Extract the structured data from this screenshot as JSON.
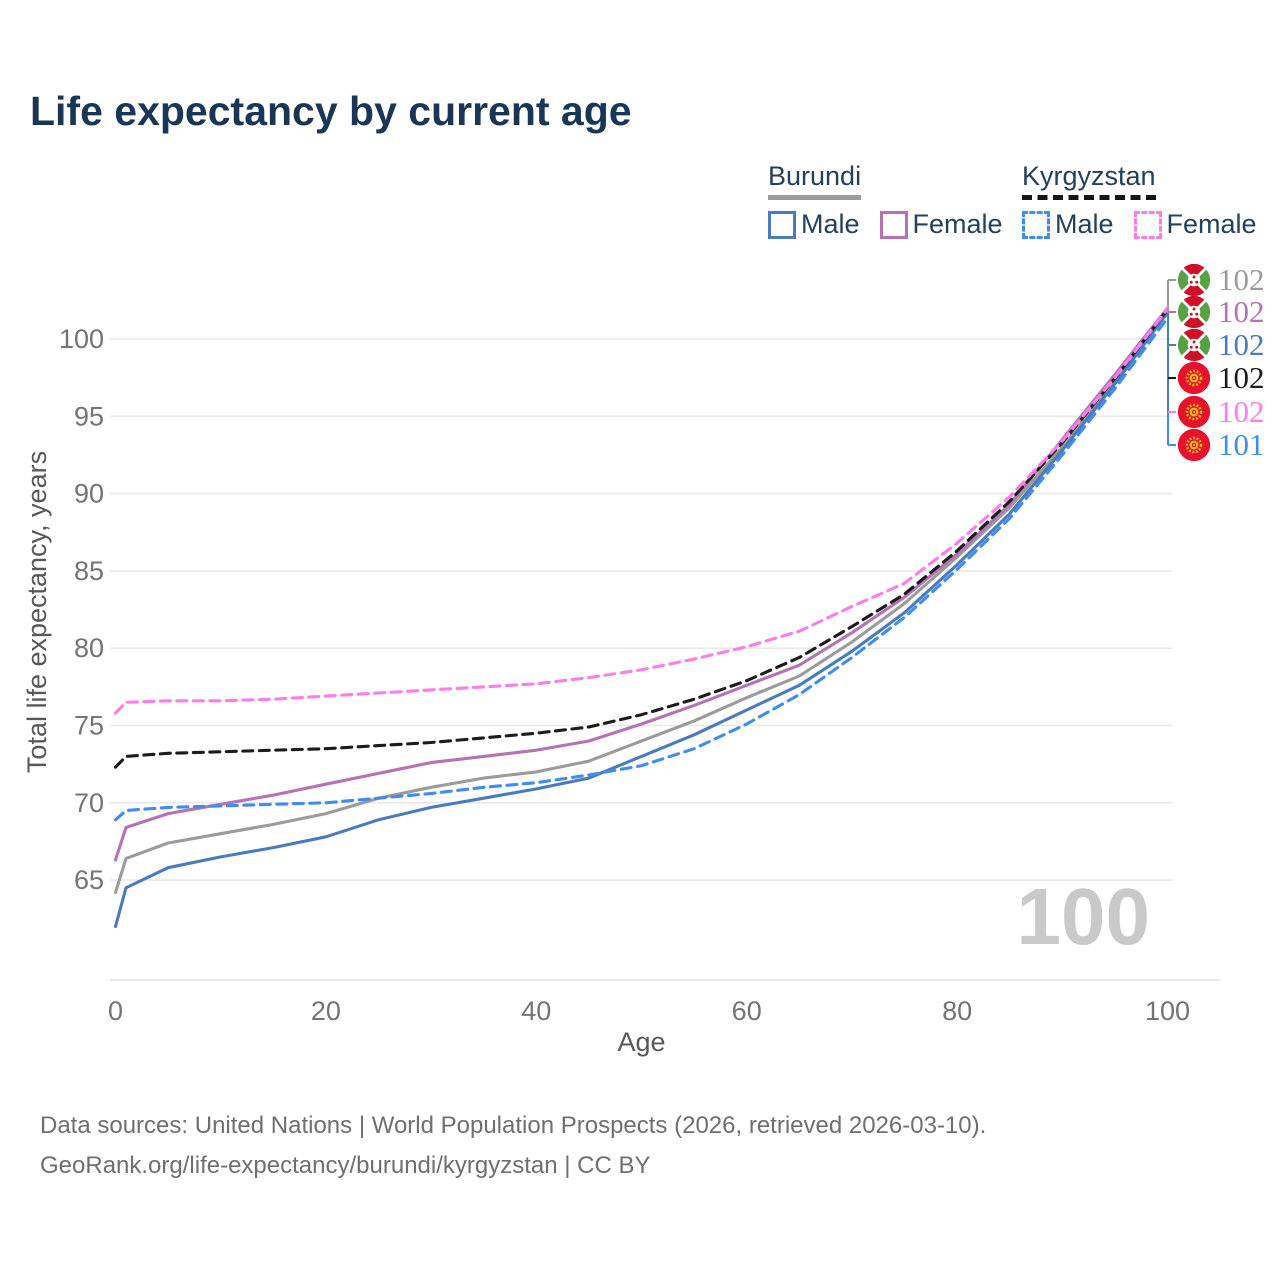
{
  "title": "Life expectancy by current age",
  "watermark": "100",
  "legend": {
    "groups": [
      {
        "name": "Burundi",
        "line_style": "solid",
        "items": [
          {
            "label": "Male",
            "color": "#4a7bbd"
          },
          {
            "label": "Female",
            "color": "#b572b4"
          }
        ]
      },
      {
        "name": "Kyrgyzstan",
        "line_style": "dashed",
        "items": [
          {
            "label": "Male",
            "color": "#408cf0"
          },
          {
            "label": "Female",
            "color": "#ff7de9"
          }
        ]
      }
    ]
  },
  "footer": {
    "line1": "Data sources: United Nations | World Population Prospects (2026, retrieved 2026-03-10).",
    "line2": "GeoRank.org/life-expectancy/burundi/kyrgyzstan | CC BY"
  },
  "chart_data": {
    "type": "line",
    "title": "Life expectancy by current age",
    "xlabel": "Age",
    "ylabel": "Total life expectancy, years",
    "xlim": [
      0,
      100
    ],
    "ylim": [
      61,
      103
    ],
    "xticks": [
      0,
      20,
      40,
      60,
      80,
      100
    ],
    "yticks": [
      65,
      70,
      75,
      80,
      85,
      90,
      95,
      100
    ],
    "grid": "horizontal",
    "legend_position": "top-right",
    "x": [
      0,
      1,
      5,
      10,
      15,
      20,
      25,
      30,
      35,
      40,
      45,
      50,
      55,
      60,
      65,
      70,
      75,
      80,
      85,
      90,
      95,
      100
    ],
    "series": [
      {
        "id": "burundi-both",
        "name": "Burundi — Both sexes",
        "country": "Burundi",
        "sex": "both",
        "line_style": "solid",
        "color": "#9b9b9b",
        "flag": "burundi",
        "end_label": "102",
        "values": [
          64.2,
          66.4,
          67.4,
          68.0,
          68.6,
          69.3,
          70.3,
          71.0,
          71.6,
          72.0,
          72.7,
          74.0,
          75.3,
          76.8,
          78.2,
          80.4,
          82.9,
          85.9,
          89.1,
          93.0,
          97.3,
          101.85
        ]
      },
      {
        "id": "burundi-female",
        "name": "Burundi — Female",
        "country": "Burundi",
        "sex": "female",
        "line_style": "solid",
        "color": "#b572b4",
        "flag": "burundi",
        "end_label": "102",
        "values": [
          66.3,
          68.4,
          69.3,
          69.9,
          70.5,
          71.2,
          71.9,
          72.6,
          73.0,
          73.4,
          74.0,
          75.1,
          76.3,
          77.6,
          78.9,
          81.0,
          83.3,
          86.1,
          89.3,
          93.5,
          97.7,
          102.0
        ]
      },
      {
        "id": "burundi-male",
        "name": "Burundi — Male",
        "country": "Burundi",
        "sex": "male",
        "line_style": "solid",
        "color": "#4a7bbd",
        "flag": "burundi",
        "end_label": "102",
        "values": [
          62.0,
          64.5,
          65.8,
          66.5,
          67.1,
          67.8,
          68.9,
          69.7,
          70.3,
          70.9,
          71.6,
          73.0,
          74.4,
          76.0,
          77.6,
          79.8,
          82.3,
          85.4,
          88.7,
          92.8,
          97.1,
          101.7
        ]
      },
      {
        "id": "kyrgyzstan-both",
        "name": "Kyrgyzstan — Both sexes",
        "country": "Kyrgyzstan",
        "sex": "both",
        "line_style": "dashed",
        "color": "#1c1c1c",
        "flag": "kyrgyzstan",
        "end_label": "102",
        "values": [
          72.3,
          73.0,
          73.2,
          73.3,
          73.4,
          73.5,
          73.7,
          73.9,
          74.2,
          74.5,
          74.9,
          75.7,
          76.7,
          77.9,
          79.4,
          81.4,
          83.5,
          86.3,
          89.5,
          93.3,
          97.45,
          101.9
        ]
      },
      {
        "id": "kyrgyzstan-female",
        "name": "Kyrgyzstan — Female",
        "country": "Kyrgyzstan",
        "sex": "female",
        "line_style": "dashed",
        "color": "#ff7de9",
        "flag": "kyrgyzstan",
        "end_label": "102",
        "values": [
          75.8,
          76.5,
          76.6,
          76.6,
          76.7,
          76.9,
          77.1,
          77.3,
          77.5,
          77.7,
          78.1,
          78.6,
          79.3,
          80.1,
          81.1,
          82.7,
          84.2,
          86.8,
          89.8,
          93.4,
          97.5,
          101.95
        ]
      },
      {
        "id": "kyrgyzstan-male",
        "name": "Kyrgyzstan — Male",
        "country": "Kyrgyzstan",
        "sex": "male",
        "line_style": "dashed",
        "color": "#408cf0",
        "flag": "kyrgyzstan",
        "end_label": "101",
        "values": [
          68.9,
          69.5,
          69.7,
          69.8,
          69.9,
          70.0,
          70.3,
          70.6,
          71.0,
          71.3,
          71.8,
          72.4,
          73.5,
          75.1,
          77.0,
          79.4,
          82.0,
          85.1,
          88.4,
          92.5,
          96.8,
          101.35
        ]
      }
    ],
    "colors": {
      "burundi_male": "#4a7bbd",
      "burundi_female": "#b572b4",
      "burundi_both": "#9b9b9b",
      "kyrgyzstan_male": "#408cf0",
      "kyrgyzstan_female": "#ff7de9",
      "kyrgyzstan_both": "#1c1c1c",
      "grid": "#e9e9e9",
      "tick_text": "#747474",
      "axis_title_text": "#585858",
      "watermark": "#c9c9c9",
      "title_text": "#1a3657"
    }
  }
}
